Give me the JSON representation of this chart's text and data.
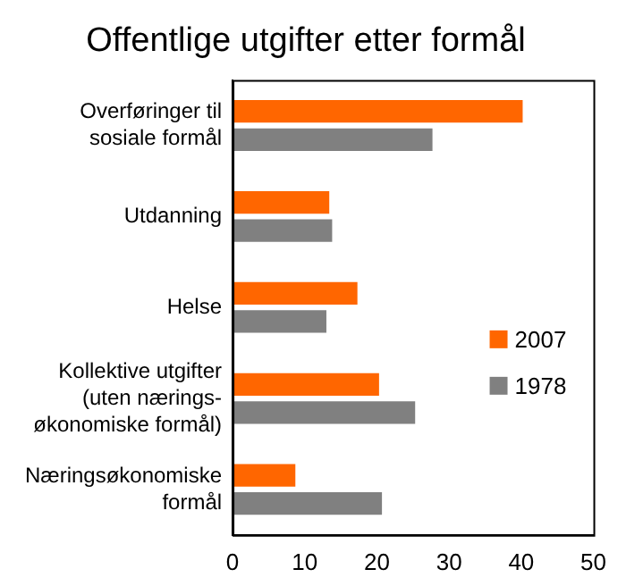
{
  "chart_data": {
    "type": "bar",
    "orientation": "horizontal",
    "title": "Offentlige utgifter etter formål",
    "categories": [
      "Overføringer til\nsosiale formål",
      "Utdanning",
      "Helse",
      "Kollektive utgifter\n(uten nærings-\nøkonomiske formål)",
      "Næringsøkonomiske\nformål"
    ],
    "series": [
      {
        "name": "2007",
        "color": "#ff6600",
        "values": [
          40.2,
          13.4,
          17.3,
          20.3,
          8.7
        ]
      },
      {
        "name": "1978",
        "color": "#808080",
        "values": [
          27.7,
          13.8,
          13.0,
          25.3,
          20.7
        ]
      }
    ],
    "xlim": [
      0,
      50
    ],
    "xticks": [
      0,
      10,
      20,
      30,
      40,
      50
    ],
    "grid": false,
    "legend": "right"
  }
}
